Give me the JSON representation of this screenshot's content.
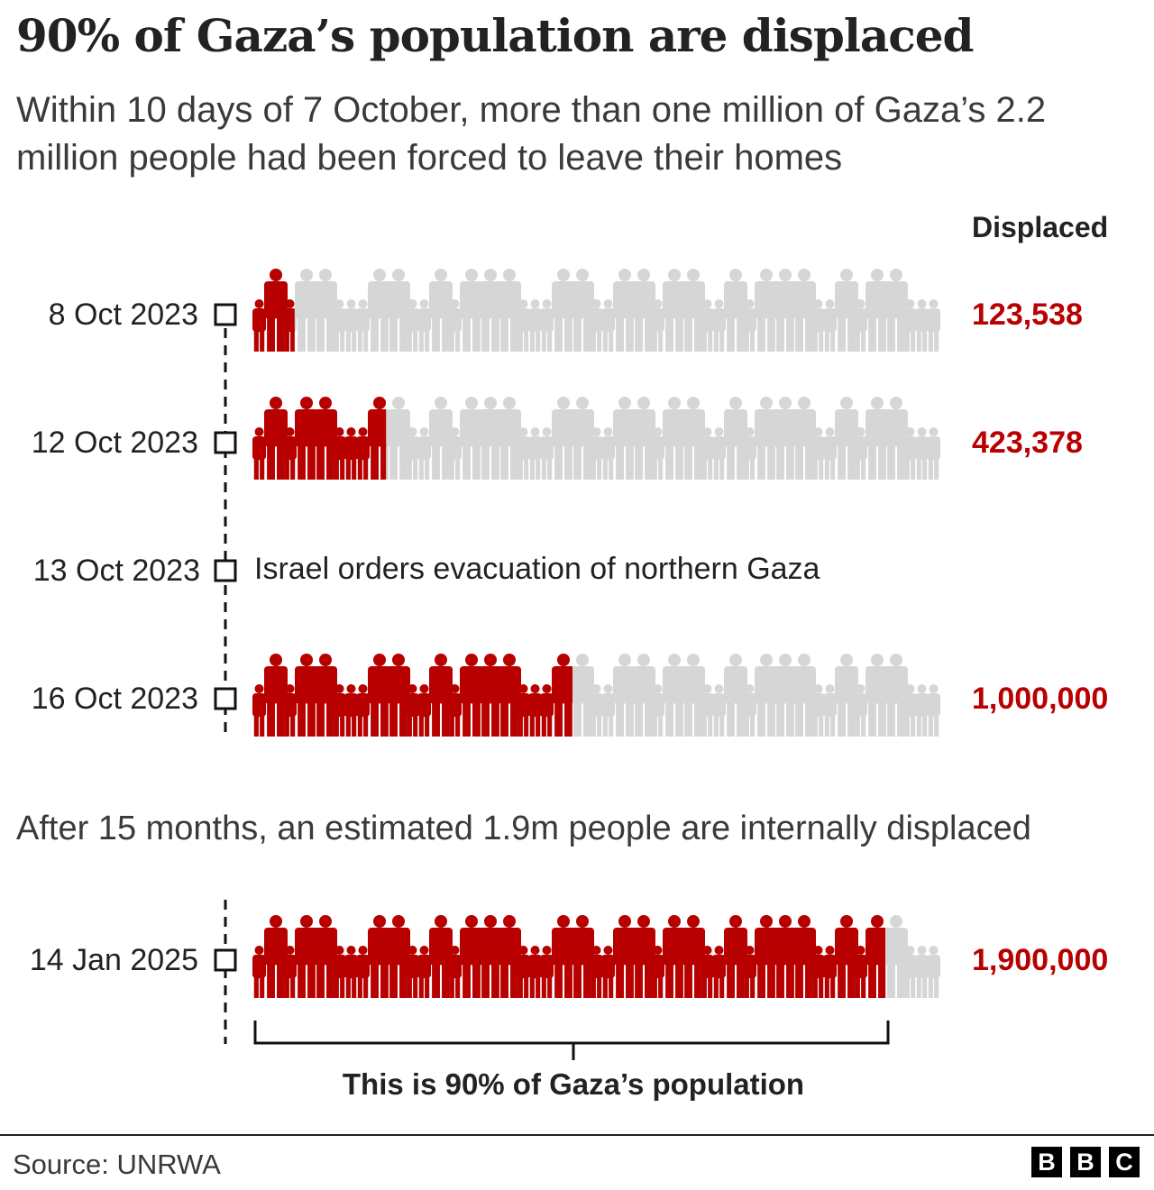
{
  "chart_data": {
    "type": "pictogram",
    "title": "90% of Gaza’s population are displaced",
    "subtitle": "Within 10 days of 7 October, more than one million of Gaza’s 2.2 million people had been forced to leave their homes",
    "value_header": "Displaced",
    "rows": [
      {
        "date": "8 Oct 2023",
        "value": "123,538",
        "share": 0.06
      },
      {
        "date": "12 Oct 2023",
        "value": "423,378",
        "share": 0.19
      },
      {
        "date": "16 Oct 2023",
        "value": "1,000,000",
        "share": 0.455
      },
      {
        "date": "14 Jan 2025",
        "value": "1,900,000",
        "share": 0.9
      }
    ],
    "event": {
      "date": "13 Oct 2023",
      "text": "Israel orders evacuation of northern Gaza"
    },
    "section_text": "After 15 months, an estimated 1.9m people are internally displaced",
    "bracket_label": "This is 90% of Gaza’s population",
    "colors": {
      "displaced": "#b80000",
      "not_displaced": "#d6d6d6"
    }
  },
  "source": "Source: UNRWA",
  "logo": [
    "B",
    "B",
    "C"
  ]
}
